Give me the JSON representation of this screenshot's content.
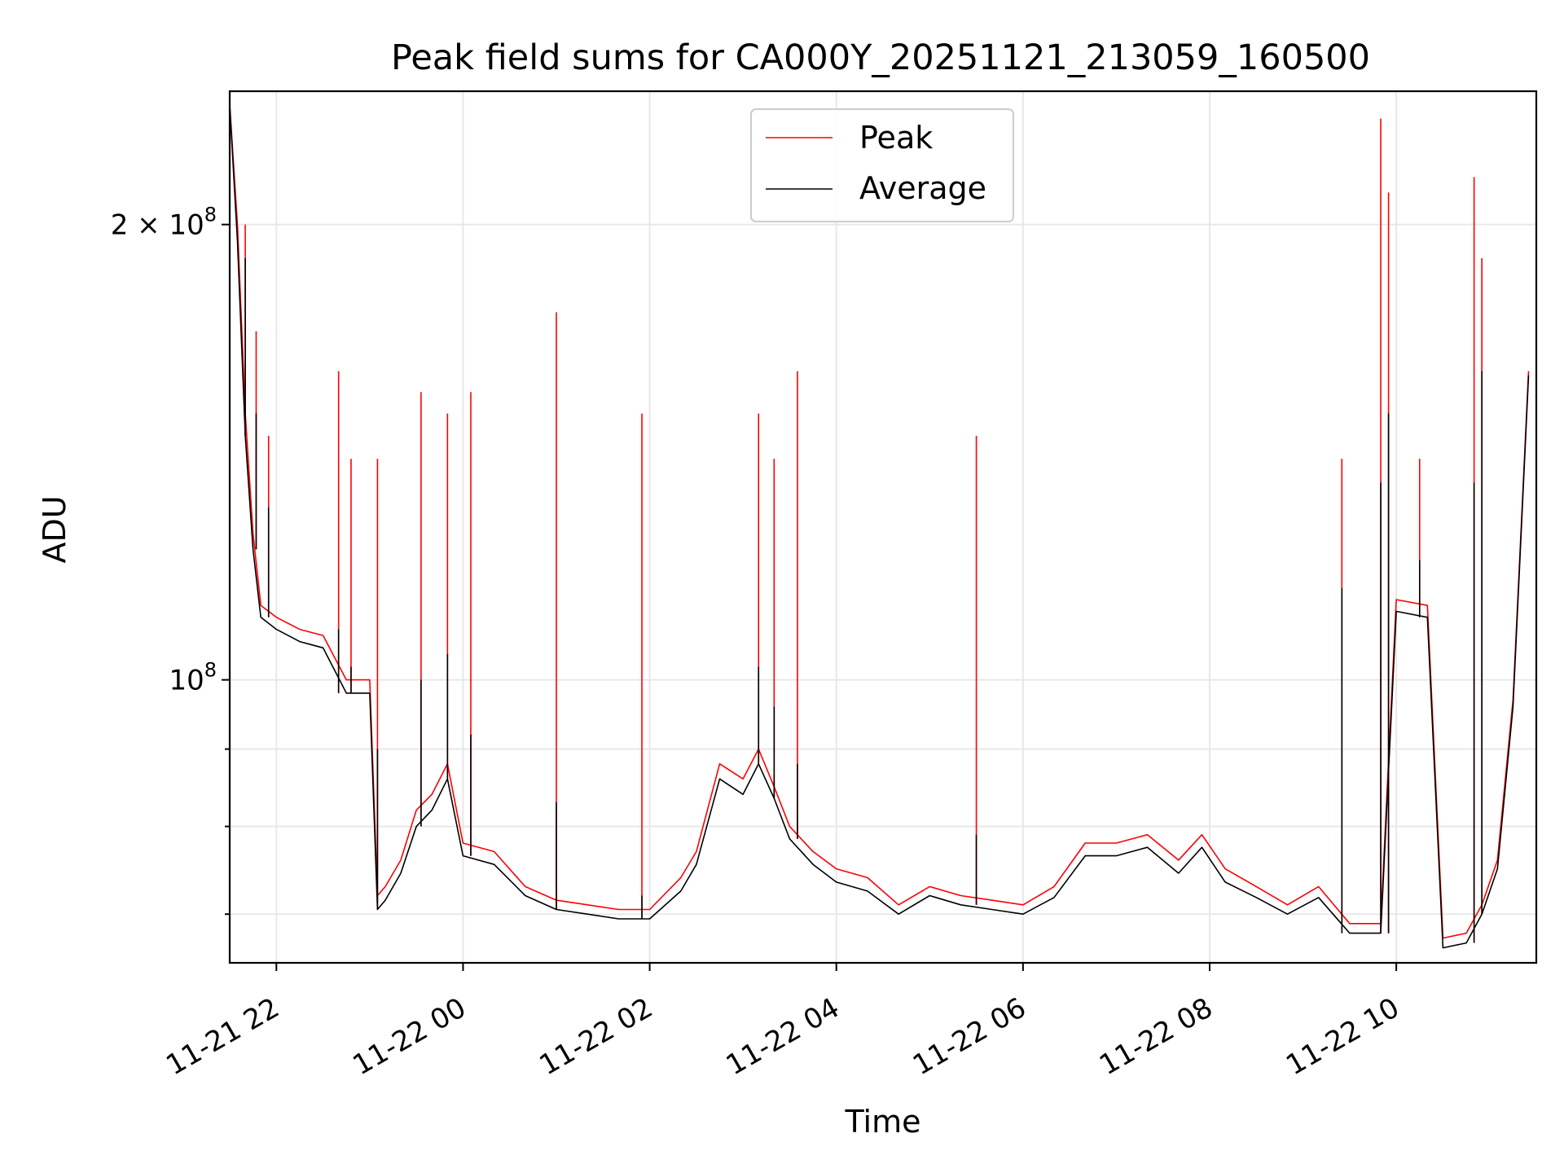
{
  "chart_data": {
    "type": "line",
    "title": "Peak field sums for CA000Y_20251121_213059_160500",
    "xlabel": "Time",
    "ylabel": "ADU",
    "yscale": "log",
    "grid": true,
    "legend_position": "top-center",
    "x_ticks": [
      "11-21 22",
      "11-22 00",
      "11-22 02",
      "11-22 04",
      "11-22 06",
      "11-22 08",
      "11-22 10"
    ],
    "y_ticks": [
      {
        "value": 100000000,
        "base": "10",
        "exp": "8",
        "mult": ""
      },
      {
        "value": 200000000,
        "base": "10",
        "exp": "8",
        "mult": "2 × "
      }
    ],
    "xlim": [
      "2025-11-21 21:30",
      "2025-11-22 11:30"
    ],
    "ylim": [
      65000000,
      245000000
    ],
    "series": [
      {
        "name": "Peak",
        "color": "#ff0000",
        "x": [
          "2025-11-21 21:30",
          "2025-11-21 21:35",
          "2025-11-21 21:40",
          "2025-11-21 21:45",
          "2025-11-21 21:50",
          "2025-11-21 22:00",
          "2025-11-21 22:15",
          "2025-11-21 22:30",
          "2025-11-21 22:45",
          "2025-11-21 23:00",
          "2025-11-21 23:05",
          "2025-11-21 23:10",
          "2025-11-21 23:20",
          "2025-11-21 23:30",
          "2025-11-21 23:40",
          "2025-11-21 23:50",
          "2025-11-22 00:00",
          "2025-11-22 00:20",
          "2025-11-22 00:40",
          "2025-11-22 01:00",
          "2025-11-22 01:20",
          "2025-11-22 01:40",
          "2025-11-22 02:00",
          "2025-11-22 02:20",
          "2025-11-22 02:30",
          "2025-11-22 02:45",
          "2025-11-22 03:00",
          "2025-11-22 03:10",
          "2025-11-22 03:20",
          "2025-11-22 03:30",
          "2025-11-22 03:45",
          "2025-11-22 04:00",
          "2025-11-22 04:20",
          "2025-11-22 04:40",
          "2025-11-22 05:00",
          "2025-11-22 05:20",
          "2025-11-22 05:40",
          "2025-11-22 06:00",
          "2025-11-22 06:20",
          "2025-11-22 06:40",
          "2025-11-22 07:00",
          "2025-11-22 07:20",
          "2025-11-22 07:40",
          "2025-11-22 07:55",
          "2025-11-22 08:10",
          "2025-11-22 08:30",
          "2025-11-22 08:50",
          "2025-11-22 09:10",
          "2025-11-22 09:30",
          "2025-11-22 09:50",
          "2025-11-22 10:00",
          "2025-11-22 10:20",
          "2025-11-22 10:30",
          "2025-11-22 10:45",
          "2025-11-22 10:55",
          "2025-11-22 11:05",
          "2025-11-22 11:15",
          "2025-11-22 11:25"
        ],
        "y": [
          240000000,
          200000000,
          150000000,
          125000000,
          112000000,
          110000000,
          108000000,
          107000000,
          100000000,
          100000000,
          72000000,
          73000000,
          76000000,
          82000000,
          84000000,
          88000000,
          78000000,
          77000000,
          73000000,
          71500000,
          71000000,
          70500000,
          70500000,
          74000000,
          77000000,
          88000000,
          86000000,
          90000000,
          85000000,
          80000000,
          77000000,
          75000000,
          74000000,
          71000000,
          73000000,
          72000000,
          71500000,
          71000000,
          73000000,
          78000000,
          78000000,
          79000000,
          76000000,
          79000000,
          75000000,
          73000000,
          71000000,
          73000000,
          69000000,
          69000000,
          113000000,
          112000000,
          67500000,
          68000000,
          71000000,
          76000000,
          97000000,
          160000000
        ]
      },
      {
        "name": "Average",
        "color": "#000000",
        "x": [
          "2025-11-21 21:30",
          "2025-11-21 21:35",
          "2025-11-21 21:40",
          "2025-11-21 21:45",
          "2025-11-21 21:50",
          "2025-11-21 22:00",
          "2025-11-21 22:15",
          "2025-11-21 22:30",
          "2025-11-21 22:45",
          "2025-11-21 23:00",
          "2025-11-21 23:05",
          "2025-11-21 23:10",
          "2025-11-21 23:20",
          "2025-11-21 23:30",
          "2025-11-21 23:40",
          "2025-11-21 23:50",
          "2025-11-22 00:00",
          "2025-11-22 00:20",
          "2025-11-22 00:40",
          "2025-11-22 01:00",
          "2025-11-22 01:20",
          "2025-11-22 01:40",
          "2025-11-22 02:00",
          "2025-11-22 02:20",
          "2025-11-22 02:30",
          "2025-11-22 02:45",
          "2025-11-22 03:00",
          "2025-11-22 03:10",
          "2025-11-22 03:20",
          "2025-11-22 03:30",
          "2025-11-22 03:45",
          "2025-11-22 04:00",
          "2025-11-22 04:20",
          "2025-11-22 04:40",
          "2025-11-22 05:00",
          "2025-11-22 05:20",
          "2025-11-22 05:40",
          "2025-11-22 06:00",
          "2025-11-22 06:20",
          "2025-11-22 06:40",
          "2025-11-22 07:00",
          "2025-11-22 07:20",
          "2025-11-22 07:40",
          "2025-11-22 07:55",
          "2025-11-22 08:10",
          "2025-11-22 08:30",
          "2025-11-22 08:50",
          "2025-11-22 09:10",
          "2025-11-22 09:30",
          "2025-11-22 09:50",
          "2025-11-22 10:00",
          "2025-11-22 10:20",
          "2025-11-22 10:30",
          "2025-11-22 10:45",
          "2025-11-22 10:55",
          "2025-11-22 11:05",
          "2025-11-22 11:15",
          "2025-11-22 11:25"
        ],
        "y": [
          240000000,
          195000000,
          145000000,
          122000000,
          110000000,
          108000000,
          106000000,
          105000000,
          98000000,
          98000000,
          70500000,
          71500000,
          74500000,
          80000000,
          82000000,
          86000000,
          76500000,
          75500000,
          72000000,
          70500000,
          70000000,
          69500000,
          69500000,
          72500000,
          75500000,
          86000000,
          84000000,
          88000000,
          83500000,
          78500000,
          75500000,
          73500000,
          72500000,
          70000000,
          72000000,
          71000000,
          70500000,
          70000000,
          71800000,
          76500000,
          76500000,
          77500000,
          74500000,
          77500000,
          73500000,
          71800000,
          70000000,
          71800000,
          68000000,
          68000000,
          111000000,
          110000000,
          66500000,
          67000000,
          70000000,
          75000000,
          96000000,
          159000000
        ]
      }
    ],
    "spikes": {
      "x": [
        "2025-11-21 21:40",
        "2025-11-21 21:47",
        "2025-11-21 21:55",
        "2025-11-21 22:40",
        "2025-11-21 22:48",
        "2025-11-21 23:05",
        "2025-11-21 23:33",
        "2025-11-21 23:50",
        "2025-11-22 00:05",
        "2025-11-22 01:00",
        "2025-11-22 01:55",
        "2025-11-22 03:10",
        "2025-11-22 03:20",
        "2025-11-22 03:35",
        "2025-11-22 05:30",
        "2025-11-22 09:25",
        "2025-11-22 09:50",
        "2025-11-22 09:55",
        "2025-11-22 10:15",
        "2025-11-22 10:50",
        "2025-11-22 10:55"
      ],
      "peak": [
        200000000,
        170000000,
        145000000,
        160000000,
        140000000,
        140000000,
        155000000,
        150000000,
        155000000,
        175000000,
        150000000,
        150000000,
        140000000,
        160000000,
        145000000,
        140000000,
        235000000,
        210000000,
        140000000,
        215000000,
        190000000
      ],
      "average": [
        190000000,
        150000000,
        130000000,
        108000000,
        102000000,
        90000000,
        100000000,
        104000000,
        92000000,
        83000000,
        72000000,
        102000000,
        96000000,
        88000000,
        79000000,
        115000000,
        135000000,
        150000000,
        120000000,
        135000000,
        160000000
      ]
    }
  }
}
